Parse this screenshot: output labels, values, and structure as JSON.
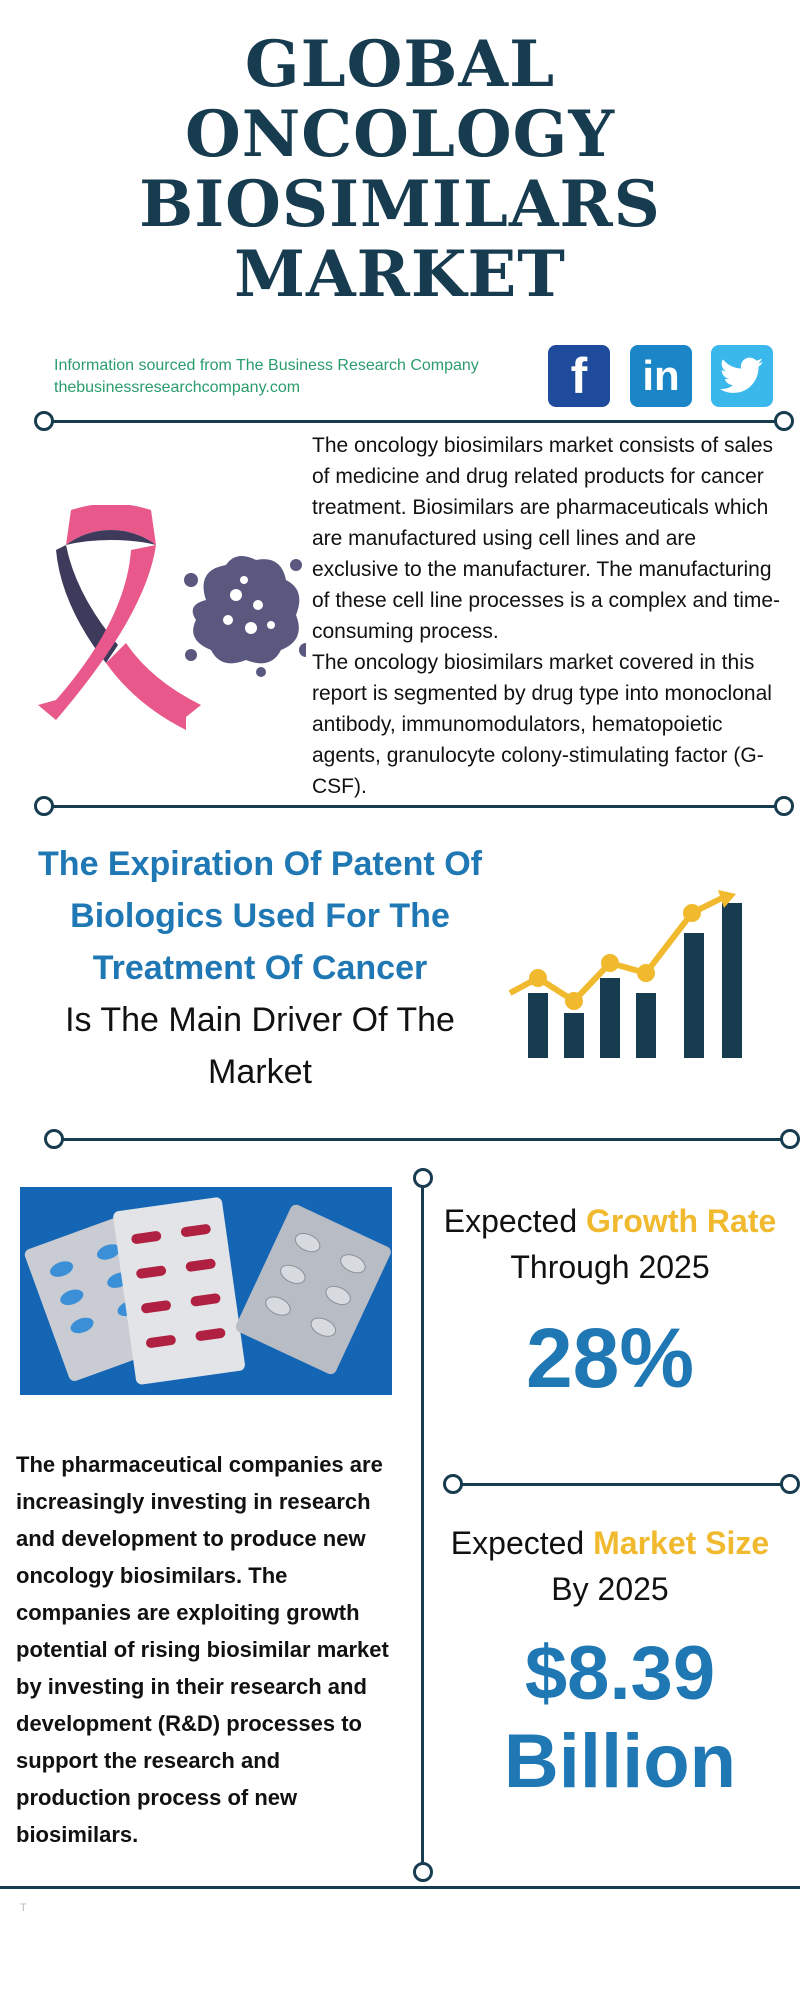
{
  "title": {
    "line1": "GLOBAL",
    "line2": "ONCOLOGY",
    "line3": "BIOSIMILARS",
    "line4": "MARKET"
  },
  "source": {
    "line1": "Information sourced from The Business Research Company",
    "line2": "thebusinessresearchcompany.com"
  },
  "social": {
    "facebook": "f",
    "linkedin": "in",
    "twitter_icon": "twitter-icon"
  },
  "intro": {
    "para1": "The oncology biosimilars market consists of sales of medicine and drug related products for cancer treatment. Biosimilars are pharmaceuticals which are manufactured using cell lines and are exclusive to the manufacturer. The manufacturing of these cell line processes is a complex and time-consuming process.",
    "para2": "The oncology biosimilars market covered in this report is segmented by drug type into monoclonal antibody, immunomodulators, hematopoietic agents, granulocyte colony-stimulating factor (G-CSF)."
  },
  "driver": {
    "highlight": "The Expiration Of Patent Of Biologics Used For The Treatment Of Cancer",
    "normal": "Is The Main Driver Of The Market"
  },
  "growth": {
    "prefix": "Expected ",
    "accent": "Growth Rate",
    "suffix": "Through 2025",
    "value": "28%"
  },
  "size": {
    "prefix": "Expected ",
    "accent": "Market Size",
    "suffix": "By 2025",
    "value_line1": "$8.39",
    "value_line2": "Billion"
  },
  "rnd_text": "The pharmaceutical companies are increasingly investing in research and development to produce new oncology biosimilars. The companies are exploiting growth potential of rising biosimilar market by investing in their research and development (R&D) processes to support the research and production process of new biosimilars.",
  "footer_mark": "T",
  "colors": {
    "navy": "#173b4f",
    "blue": "#1f78b4",
    "gold": "#f0b92e",
    "pink": "#e8588a",
    "green": "#2a9d6b"
  }
}
